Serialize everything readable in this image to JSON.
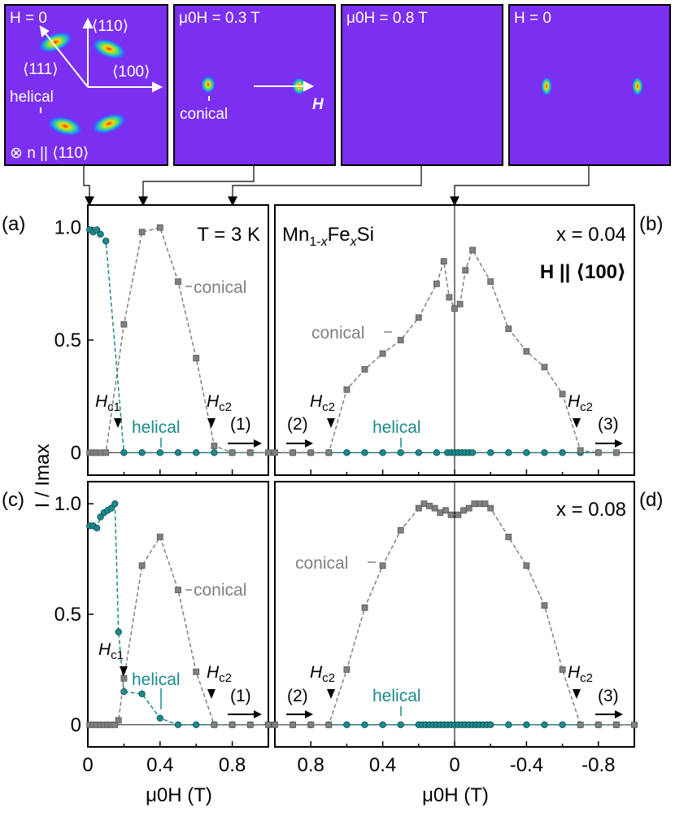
{
  "figure": {
    "material": "Mn$1-x$Fe$x$Si",
    "temperature": "T = 3 K",
    "field_direction": "H || ⟨100⟩",
    "xlabel": "μ0H (T)",
    "ylabel": "I / Imax",
    "y_ticks": [
      "0",
      "0.5",
      "1.0"
    ],
    "x_ticks_left": [
      "0",
      "0.4",
      "0.8"
    ],
    "x_ticks_right": [
      "0.8",
      "0.4",
      "0",
      "-0.4",
      "-0.8"
    ],
    "colors": {
      "helical": "#1a8a8c",
      "conical": "#808080",
      "detector_bg": "#7b2ff0"
    }
  },
  "detector_panels": [
    {
      "title": "H = 0",
      "labels": [
        "⟨110⟩",
        "⟨111⟩",
        "⟨100⟩",
        "helical",
        "⊗ n || ⟨110⟩"
      ]
    },
    {
      "title": "μ0H = 0.3 T",
      "labels": [
        "conical",
        "H"
      ]
    },
    {
      "title": "μ0H = 0.8 T",
      "labels": []
    },
    {
      "title": "H = 0",
      "labels": []
    }
  ],
  "panels": [
    {
      "id": "(a)",
      "label": "(a)",
      "annotations": {
        "conical": "conical",
        "helical": "helical",
        "hc1": "Hc1",
        "hc2": "Hc2",
        "step": "(1)"
      }
    },
    {
      "id": "(b)",
      "label": "(b)",
      "composition": "x = 0.04",
      "annotations": {
        "conical": "conical",
        "helical": "helical",
        "hc2a": "Hc2",
        "hc2b": "Hc2",
        "step2": "(2)",
        "step3": "(3)"
      }
    },
    {
      "id": "(c)",
      "label": "(c)",
      "annotations": {
        "conical": "conical",
        "helical": "helical",
        "hc1": "Hc1",
        "hc2": "Hc2",
        "step": "(1)"
      }
    },
    {
      "id": "(d)",
      "label": "(d)",
      "composition": "x = 0.08",
      "annotations": {
        "conical": "conical",
        "helical": "helical",
        "hc2a": "Hc2",
        "hc2b": "Hc2",
        "step2": "(2)",
        "step3": "(3)"
      }
    }
  ],
  "chart_data": [
    {
      "type": "scatter",
      "panel": "(a)",
      "composition": "x = 0.04",
      "temperature": "3 K",
      "xlabel": "μ0H (T)",
      "ylabel": "I / Imax",
      "xlim": [
        0,
        1.0
      ],
      "ylim": [
        -0.1,
        1.1
      ],
      "series": [
        {
          "name": "helical",
          "x": [
            0.01,
            0.03,
            0.05,
            0.07,
            0.1,
            0.2,
            0.3,
            0.4,
            0.5,
            0.6,
            0.7,
            0.8,
            0.9,
            1.0
          ],
          "values": [
            0.99,
            0.98,
            0.99,
            0.97,
            0.94,
            0,
            0,
            0,
            0,
            0,
            0,
            0,
            0,
            0
          ]
        },
        {
          "name": "conical",
          "x": [
            0.01,
            0.03,
            0.05,
            0.07,
            0.1,
            0.2,
            0.3,
            0.4,
            0.5,
            0.6,
            0.7,
            0.8,
            0.9,
            1.0
          ],
          "values": [
            0,
            0,
            0,
            0,
            0,
            0.57,
            0.98,
            1.0,
            0.76,
            0.42,
            0.03,
            0,
            0,
            0
          ]
        }
      ]
    },
    {
      "type": "scatter",
      "panel": "(b)",
      "composition": "x = 0.04",
      "xlabel": "μ0H (T)",
      "ylabel": "I / Imax",
      "xlim": [
        1.0,
        -1.0
      ],
      "ylim": [
        -0.1,
        1.1
      ],
      "series": [
        {
          "name": "helical",
          "x": [
            1.0,
            0.9,
            0.8,
            0.7,
            0.6,
            0.5,
            0.4,
            0.3,
            0.2,
            0.1,
            0.04,
            0.02,
            0,
            -0.02,
            -0.04,
            -0.06,
            -0.08,
            -0.1,
            -0.2,
            -0.3,
            -0.4,
            -0.5,
            -0.6,
            -0.7,
            -0.8,
            -0.9
          ],
          "values": [
            0,
            0,
            0,
            0,
            0,
            0,
            0,
            0,
            0,
            0,
            0,
            0,
            0,
            0,
            0,
            0,
            0,
            0,
            0,
            0,
            0,
            0,
            0,
            0,
            0,
            0
          ]
        },
        {
          "name": "conical",
          "x": [
            1.0,
            0.9,
            0.8,
            0.7,
            0.6,
            0.5,
            0.4,
            0.3,
            0.2,
            0.1,
            0.06,
            0.03,
            0,
            -0.03,
            -0.06,
            -0.1,
            -0.2,
            -0.3,
            -0.4,
            -0.5,
            -0.6,
            -0.7,
            -0.8,
            -0.9
          ],
          "values": [
            0,
            0,
            0,
            0,
            0.28,
            0.37,
            0.44,
            0.5,
            0.6,
            0.75,
            0.85,
            0.69,
            0.64,
            0.66,
            0.81,
            0.9,
            0.76,
            0.55,
            0.45,
            0.38,
            0.26,
            0.01,
            0,
            0
          ]
        }
      ]
    },
    {
      "type": "scatter",
      "panel": "(c)",
      "composition": "x = 0.08",
      "temperature": "3 K",
      "xlabel": "μ0H (T)",
      "ylabel": "I / Imax",
      "xlim": [
        0,
        1.0
      ],
      "ylim": [
        -0.1,
        1.1
      ],
      "series": [
        {
          "name": "helical",
          "x": [
            0.01,
            0.03,
            0.05,
            0.07,
            0.09,
            0.11,
            0.13,
            0.15,
            0.17,
            0.2,
            0.3,
            0.4,
            0.5,
            0.6,
            0.7,
            0.8,
            0.9,
            1.0
          ],
          "values": [
            0.9,
            0.9,
            0.89,
            0.94,
            0.96,
            0.97,
            0.98,
            1.0,
            0.42,
            0.15,
            0.14,
            0.03,
            0,
            0,
            0,
            0,
            0,
            0
          ]
        },
        {
          "name": "conical",
          "x": [
            0.01,
            0.03,
            0.05,
            0.07,
            0.09,
            0.11,
            0.13,
            0.15,
            0.17,
            0.2,
            0.3,
            0.4,
            0.5,
            0.6,
            0.7,
            0.8,
            0.9,
            1.0
          ],
          "values": [
            0,
            0,
            0,
            0,
            0,
            0,
            0,
            0,
            0.02,
            0.21,
            0.72,
            0.85,
            0.61,
            0.24,
            0,
            0,
            0,
            0
          ]
        }
      ]
    },
    {
      "type": "scatter",
      "panel": "(d)",
      "composition": "x = 0.08",
      "xlabel": "μ0H (T)",
      "ylabel": "I / Imax",
      "xlim": [
        1.0,
        -1.0
      ],
      "ylim": [
        -0.1,
        1.1
      ],
      "series": [
        {
          "name": "helical",
          "x": [
            1.0,
            0.9,
            0.8,
            0.7,
            0.6,
            0.5,
            0.4,
            0.3,
            0.2,
            0.18,
            0.16,
            0.14,
            0.12,
            0.1,
            0.08,
            0.06,
            0.04,
            0.02,
            0,
            -0.02,
            -0.04,
            -0.06,
            -0.08,
            -0.1,
            -0.12,
            -0.14,
            -0.16,
            -0.18,
            -0.2,
            -0.3,
            -0.4,
            -0.5,
            -0.6,
            -0.7,
            -0.8,
            -0.9,
            -1.0
          ],
          "values": [
            0,
            0,
            0,
            0,
            0,
            0,
            0,
            0,
            0,
            0,
            0,
            0,
            0,
            0,
            0,
            0,
            0,
            0,
            0,
            0,
            0,
            0,
            0,
            0,
            0,
            0,
            0,
            0,
            0,
            0,
            0,
            0,
            0,
            0,
            0,
            0,
            0
          ]
        },
        {
          "name": "conical",
          "x": [
            1.0,
            0.9,
            0.8,
            0.7,
            0.6,
            0.5,
            0.4,
            0.3,
            0.2,
            0.17,
            0.14,
            0.11,
            0.08,
            0.05,
            0.02,
            -0.02,
            -0.05,
            -0.08,
            -0.11,
            -0.14,
            -0.17,
            -0.2,
            -0.3,
            -0.4,
            -0.5,
            -0.6,
            -0.7,
            -0.8,
            -0.9,
            -1.0
          ],
          "values": [
            0,
            0,
            0,
            0,
            0.25,
            0.53,
            0.72,
            0.88,
            0.98,
            1.0,
            0.99,
            0.98,
            0.96,
            0.97,
            0.95,
            0.95,
            0.97,
            0.98,
            1.0,
            1.0,
            1.0,
            0.98,
            0.85,
            0.72,
            0.54,
            0.25,
            0,
            0,
            0,
            0
          ]
        }
      ]
    }
  ]
}
